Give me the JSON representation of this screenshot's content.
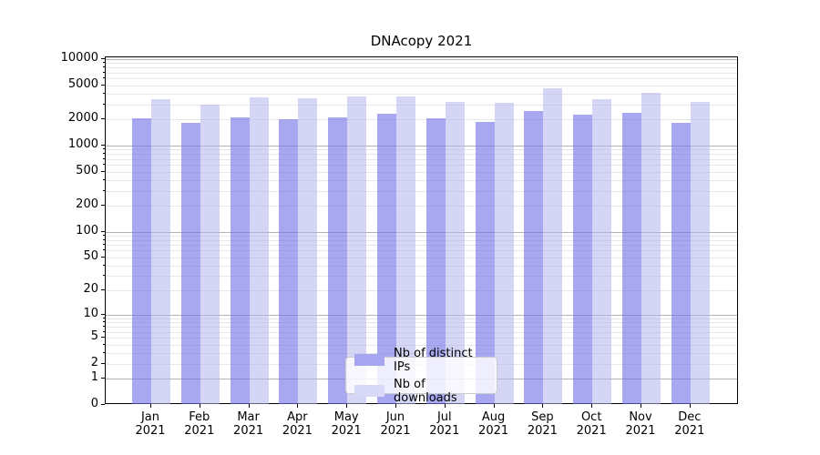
{
  "title": "DNAcopy 2021",
  "legend": {
    "items": [
      {
        "label": "Nb of distinct IPs",
        "color": "#a6a6f0"
      },
      {
        "label": "Nb of downloads",
        "color": "#d8d8f7"
      }
    ],
    "position": "lower center"
  },
  "colors": {
    "bar_ips": "rgba(114,114,232,0.62)",
    "bar_downloads": "rgba(178,178,238,0.55)",
    "grid_major": "#b3b3b3",
    "grid_minor": "#e7e7e7",
    "axis": "#000000",
    "background": "#ffffff"
  },
  "chart_data": {
    "type": "bar",
    "title": "DNAcopy 2021",
    "categories": [
      "Jan 2021",
      "Feb 2021",
      "Mar 2021",
      "Apr 2021",
      "May 2021",
      "Jun 2021",
      "Jul 2021",
      "Aug 2021",
      "Sep 2021",
      "Oct 2021",
      "Nov 2021",
      "Dec 2021"
    ],
    "series": [
      {
        "name": "Nb of distinct IPs",
        "values": [
          2050,
          1850,
          2130,
          2000,
          2120,
          2320,
          2080,
          1860,
          2530,
          2280,
          2380,
          1830
        ]
      },
      {
        "name": "Nb of downloads",
        "values": [
          3440,
          2980,
          3640,
          3500,
          3700,
          3730,
          3220,
          3150,
          4560,
          3470,
          4080,
          3230
        ]
      }
    ],
    "xlabel": "",
    "ylabel": "",
    "yscale": "log10(value+1)",
    "yticks": [
      0,
      1,
      2,
      5,
      10,
      20,
      50,
      100,
      200,
      500,
      1000,
      2000,
      5000,
      10000
    ],
    "ylim": [
      0,
      10500
    ],
    "grid": "major and minor horizontal gridlines",
    "legend_position": "lower center inside plot"
  }
}
